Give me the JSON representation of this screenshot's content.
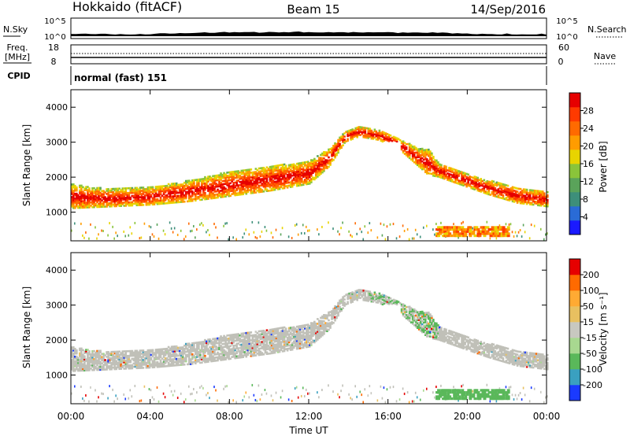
{
  "header": {
    "station": "Hokkaido (fitACF)",
    "beam": "Beam 15",
    "date": "14/Sep/2016"
  },
  "strip_labels": {
    "nsky": "N.Sky",
    "nsearch": "N.Search",
    "freq_line1": "Freq.",
    "freq_line2": "[MHz]",
    "nave": "Nave",
    "cpid": "CPID",
    "cpid_value": "normal (fast) 151",
    "noise_ticks": [
      "10^5",
      "10^0"
    ],
    "freq_ticks": [
      "18",
      "8"
    ],
    "nave_ticks": [
      "60",
      "0"
    ]
  },
  "colors": {
    "power": [
      "#1a1aff",
      "#2a6bd6",
      "#3d8f7a",
      "#5aa35a",
      "#8ac43a",
      "#e8d400",
      "#ff9c00",
      "#ff6a00",
      "#ff3a00",
      "#e60000"
    ],
    "velocity": [
      "#e60000",
      "#ff6a00",
      "#ffaa33",
      "#e8c060",
      "#c8c8c0",
      "#a8d890",
      "#5ab85a",
      "#3aa0c0",
      "#1a3aff"
    ],
    "gray": "#c0c0b8"
  },
  "chart_data": [
    {
      "type": "heatmap",
      "name": "power",
      "ylabel": "Slant Range [km]",
      "xlabel": "",
      "colorbar_label": "Power [dB]",
      "x_ticks": [
        "00:00",
        "04:00",
        "08:00",
        "12:00",
        "16:00",
        "20:00",
        "00:00"
      ],
      "x_tick_hours": [
        0,
        4,
        8,
        12,
        16,
        20,
        24
      ],
      "y_ticks": [
        1000,
        2000,
        3000,
        4000
      ],
      "ylim": [
        180,
        4500
      ],
      "xlim": [
        0,
        24
      ],
      "colorbar_ticks": [
        4,
        8,
        12,
        16,
        20,
        24,
        28
      ],
      "colorbar_range": [
        0,
        32
      ]
    },
    {
      "type": "heatmap",
      "name": "velocity",
      "ylabel": "Slant Range [km]",
      "xlabel": "Time UT",
      "colorbar_label": "Velocity [m s⁻¹]",
      "x_ticks": [
        "00:00",
        "04:00",
        "08:00",
        "12:00",
        "16:00",
        "20:00",
        "00:00"
      ],
      "x_tick_hours": [
        0,
        4,
        8,
        12,
        16,
        20,
        24
      ],
      "y_ticks": [
        1000,
        2000,
        3000,
        4000
      ],
      "ylim": [
        180,
        4500
      ],
      "xlim": [
        0,
        24
      ],
      "colorbar_ticks": [
        "200",
        "100",
        "50",
        "15",
        "-15",
        "-50",
        "-100",
        "-200"
      ]
    }
  ]
}
